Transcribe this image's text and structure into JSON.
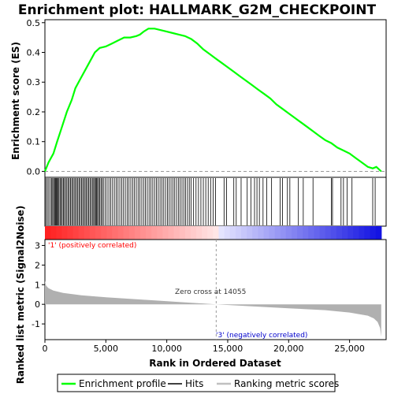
{
  "chart_data": {
    "type": "line",
    "title": "Enrichment plot: HALLMARK_G2M_CHECKPOINT",
    "top_panel": {
      "ylabel": "Enrichment score (ES)",
      "ylim": [
        -0.02,
        0.51
      ],
      "yticks": [
        0.0,
        0.1,
        0.2,
        0.3,
        0.4,
        0.5
      ],
      "ytick_labels": [
        "0.0",
        "0.1",
        "0.2",
        "0.3",
        "0.4",
        "0.5"
      ],
      "series": [
        {
          "name": "Enrichment profile",
          "color": "#00ff00",
          "x": [
            0,
            300,
            700,
            1000,
            1400,
            1800,
            2200,
            2500,
            2900,
            3300,
            3700,
            4100,
            4500,
            5000,
            5500,
            6000,
            6500,
            7000,
            7500,
            7800,
            8100,
            8500,
            9000,
            9500,
            10000,
            10500,
            11000,
            11500,
            12000,
            12500,
            13000,
            13500,
            14000,
            14500,
            15000,
            15500,
            16000,
            16500,
            17000,
            17500,
            18000,
            18500,
            19000,
            19500,
            20000,
            20500,
            21000,
            21500,
            22000,
            22500,
            23000,
            23500,
            24000,
            24500,
            25000,
            25500,
            26000,
            26500,
            26900,
            27200,
            27600
          ],
          "values": [
            0.0,
            0.03,
            0.06,
            0.1,
            0.15,
            0.2,
            0.24,
            0.28,
            0.31,
            0.34,
            0.37,
            0.4,
            0.415,
            0.42,
            0.43,
            0.44,
            0.45,
            0.45,
            0.455,
            0.46,
            0.47,
            0.48,
            0.48,
            0.475,
            0.47,
            0.465,
            0.46,
            0.455,
            0.445,
            0.43,
            0.41,
            0.395,
            0.38,
            0.365,
            0.35,
            0.335,
            0.32,
            0.305,
            0.29,
            0.275,
            0.26,
            0.245,
            0.225,
            0.21,
            0.195,
            0.18,
            0.165,
            0.15,
            0.135,
            0.12,
            0.105,
            0.095,
            0.08,
            0.07,
            0.06,
            0.045,
            0.03,
            0.015,
            0.01,
            0.015,
            0.0
          ]
        }
      ]
    },
    "hits_panel": {
      "series_name": "Hits",
      "hit_positions": [
        80,
        200,
        320,
        450,
        560,
        640,
        720,
        800,
        870,
        940,
        1010,
        1080,
        1150,
        1240,
        1330,
        1420,
        1510,
        1600,
        1700,
        1800,
        1900,
        2000,
        2100,
        2200,
        2300,
        2400,
        2500,
        2600,
        2700,
        2800,
        2900,
        3000,
        3100,
        3200,
        3300,
        3400,
        3500,
        3600,
        3700,
        3800,
        3900,
        4000,
        4080,
        4160,
        4240,
        4320,
        4400,
        4500,
        4600,
        4700,
        4800,
        4950,
        5100,
        5250,
        5400,
        5550,
        5700,
        5850,
        6000,
        6150,
        6300,
        6450,
        6600,
        6750,
        6900,
        7050,
        7200,
        7350,
        7500,
        7650,
        7800,
        7950,
        8100,
        8250,
        8400,
        8550,
        8700,
        8850,
        9000,
        9150,
        9300,
        9450,
        9600,
        9750,
        9900,
        10050,
        10200,
        10350,
        10500,
        10650,
        10800,
        10950,
        11100,
        11250,
        11400,
        11550,
        11700,
        11850,
        12000,
        12200,
        12400,
        12600,
        12800,
        13000,
        13200,
        13400,
        13600,
        13800,
        14000,
        14700,
        14900,
        15500,
        15700,
        16100,
        16600,
        16900,
        17200,
        17400,
        17600,
        17900,
        18200,
        18600,
        19300,
        19500,
        19900,
        20100,
        20800,
        21200,
        22000,
        23500,
        23600,
        24300,
        24500,
        24800,
        25200,
        26900,
        27100
      ]
    },
    "ranked_panel": {
      "ylabel": "Ranked list metric (Signal2Noise)",
      "xlabel": "Rank in Ordered Dataset",
      "ylim": [
        -1.8,
        3.3
      ],
      "yticks": [
        -1,
        0,
        1,
        2,
        3
      ],
      "ytick_labels": [
        "-1",
        "0",
        "1",
        "2",
        "3"
      ],
      "xlim": [
        0,
        28000
      ],
      "xticks": [
        0,
        5000,
        10000,
        15000,
        20000,
        25000
      ],
      "xtick_labels": [
        "0",
        "5,000",
        "10,000",
        "15,000",
        "20,000",
        "25,000"
      ],
      "series_name": "Ranking metric scores",
      "total_ranks": 27600,
      "zero_cross": 14055,
      "metric_profile": {
        "x": [
          0,
          100,
          300,
          700,
          1500,
          3000,
          5000,
          8000,
          11000,
          14055,
          17000,
          20000,
          23000,
          25000,
          26500,
          27000,
          27300,
          27500,
          27600
        ],
        "values": [
          1.2,
          0.95,
          0.82,
          0.7,
          0.58,
          0.46,
          0.36,
          0.24,
          0.12,
          0.0,
          -0.1,
          -0.2,
          -0.3,
          -0.42,
          -0.58,
          -0.72,
          -0.9,
          -1.2,
          -1.65
        ]
      },
      "annotations": {
        "positive": "'1' (positively correlated)",
        "negative": "'3' (negatively correlated)",
        "zero_cross": "Zero cross at 14055"
      },
      "colors": {
        "positive_label": "#ff0000",
        "negative_label": "#0000cc",
        "fill": "#b0b0b0"
      }
    },
    "legend": {
      "entries": [
        {
          "label": "Enrichment profile",
          "color": "#00ff00"
        },
        {
          "label": "Hits",
          "color": "#000000"
        },
        {
          "label": "Ranking metric scores",
          "color": "#c0c0c0"
        }
      ]
    }
  }
}
